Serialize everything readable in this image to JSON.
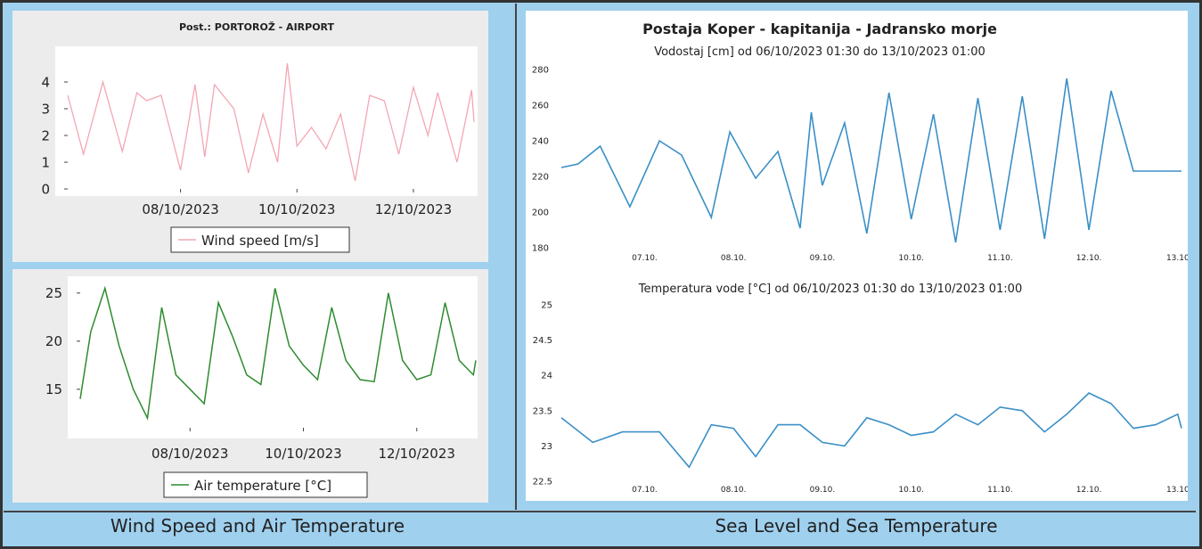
{
  "footer": {
    "left": "Wind Speed and Air Temperature",
    "right": "Sea Level and Sea Temperature"
  },
  "chart_data": [
    {
      "type": "line",
      "title": "Post.: PORTOROŽ - AIRPORT",
      "xlabel": "",
      "ylabel": "",
      "x_ticks": [
        "08/10/2023",
        "10/10/2023",
        "12/10/2023"
      ],
      "y_ticks": [
        "0",
        "1",
        "2",
        "3",
        "4"
      ],
      "ylim": [
        0,
        4.8
      ],
      "legend": "bottom-center",
      "color": "#f4a6b4",
      "series": [
        {
          "name": "Wind speed [m/s]",
          "x": [
            "2023-10-06T01:30",
            "2023-10-06T08:00",
            "2023-10-06T16:00",
            "2023-10-07T00:00",
            "2023-10-07T06:00",
            "2023-10-07T10:00",
            "2023-10-07T16:00",
            "2023-10-08T00:00",
            "2023-10-08T06:00",
            "2023-10-08T10:00",
            "2023-10-08T14:00",
            "2023-10-08T22:00",
            "2023-10-09T04:00",
            "2023-10-09T10:00",
            "2023-10-09T16:00",
            "2023-10-09T20:00",
            "2023-10-10T00:00",
            "2023-10-10T06:00",
            "2023-10-10T12:00",
            "2023-10-10T18:00",
            "2023-10-11T00:00",
            "2023-10-11T06:00",
            "2023-10-11T12:00",
            "2023-10-11T18:00",
            "2023-10-12T00:00",
            "2023-10-12T06:00",
            "2023-10-12T10:00",
            "2023-10-12T18:00",
            "2023-10-13T00:00",
            "2023-10-13T01:00"
          ],
          "y": [
            3.5,
            1.3,
            4.0,
            1.4,
            3.6,
            3.3,
            3.5,
            0.7,
            3.9,
            1.2,
            3.9,
            3.0,
            0.6,
            2.8,
            1.0,
            4.7,
            1.6,
            2.3,
            1.5,
            2.8,
            0.3,
            3.5,
            3.3,
            1.3,
            3.8,
            2.0,
            3.6,
            1.0,
            3.7,
            2.5
          ]
        }
      ]
    },
    {
      "type": "line",
      "title": "",
      "xlabel": "",
      "ylabel": "",
      "x_ticks": [
        "08/10/2023",
        "10/10/2023",
        "12/10/2023"
      ],
      "y_ticks": [
        "15",
        "20",
        "25"
      ],
      "ylim": [
        11,
        26
      ],
      "legend": "bottom-center",
      "color": "#2e8b2e",
      "series": [
        {
          "name": "Air temperature [°C]",
          "x": [
            "2023-10-06T01:30",
            "2023-10-06T06:00",
            "2023-10-06T12:00",
            "2023-10-06T18:00",
            "2023-10-07T00:00",
            "2023-10-07T06:00",
            "2023-10-07T12:00",
            "2023-10-07T18:00",
            "2023-10-08T00:00",
            "2023-10-08T06:00",
            "2023-10-08T12:00",
            "2023-10-08T18:00",
            "2023-10-09T00:00",
            "2023-10-09T06:00",
            "2023-10-09T12:00",
            "2023-10-09T18:00",
            "2023-10-10T00:00",
            "2023-10-10T06:00",
            "2023-10-10T12:00",
            "2023-10-10T18:00",
            "2023-10-11T00:00",
            "2023-10-11T06:00",
            "2023-10-11T12:00",
            "2023-10-11T18:00",
            "2023-10-12T00:00",
            "2023-10-12T06:00",
            "2023-10-12T12:00",
            "2023-10-12T18:00",
            "2023-10-13T00:00",
            "2023-10-13T01:00"
          ],
          "y": [
            14.0,
            21.0,
            25.5,
            19.5,
            15.0,
            12.0,
            23.5,
            16.5,
            15.0,
            13.5,
            24.0,
            20.5,
            16.5,
            15.5,
            25.5,
            19.5,
            17.5,
            16.0,
            23.5,
            18.0,
            16.0,
            15.8,
            25.0,
            18.0,
            16.0,
            16.5,
            24.0,
            18.0,
            16.5,
            18.0
          ]
        }
      ]
    },
    {
      "type": "line",
      "title": "Postaja Koper - kapitanija - Jadransko morje",
      "subtitle": "Vodostaj [cm] od 06/10/2023 01:30 do 13/10/2023 01:00",
      "xlabel": "",
      "ylabel": "",
      "x_ticks": [
        "07.10.",
        "08.10.",
        "09.10.",
        "10.10.",
        "11.10.",
        "12.10.",
        "13.10"
      ],
      "y_ticks": [
        "180",
        "200",
        "220",
        "240",
        "260",
        "280"
      ],
      "ylim": [
        180,
        280
      ],
      "color": "#3a8fc7",
      "series": [
        {
          "x": [
            "2023-10-06T01:30",
            "2023-10-06T06:00",
            "2023-10-06T12:00",
            "2023-10-06T20:00",
            "2023-10-07T04:00",
            "2023-10-07T10:00",
            "2023-10-07T18:00",
            "2023-10-07T23:00",
            "2023-10-08T06:00",
            "2023-10-08T12:00",
            "2023-10-08T18:00",
            "2023-10-08T21:00",
            "2023-10-09T00:00",
            "2023-10-09T06:00",
            "2023-10-09T12:00",
            "2023-10-09T18:00",
            "2023-10-10T00:00",
            "2023-10-10T06:00",
            "2023-10-10T12:00",
            "2023-10-10T18:00",
            "2023-10-11T00:00",
            "2023-10-11T06:00",
            "2023-10-11T12:00",
            "2023-10-11T18:00",
            "2023-10-12T00:00",
            "2023-10-12T06:00",
            "2023-10-12T12:00",
            "2023-10-12T18:00",
            "2023-10-13T00:00",
            "2023-10-13T01:00"
          ],
          "y": [
            225,
            227,
            237,
            203,
            240,
            232,
            197,
            245,
            219,
            234,
            191,
            256,
            215,
            250,
            188,
            267,
            196,
            255,
            183,
            264,
            190,
            265,
            185,
            275,
            190,
            268,
            223,
            223,
            223,
            223
          ]
        }
      ]
    },
    {
      "type": "line",
      "title": "Temperatura vode [°C] od 06/10/2023 01:30 do 13/10/2023 01:00",
      "xlabel": "",
      "ylabel": "",
      "x_ticks": [
        "07.10.",
        "08.10.",
        "09.10.",
        "10.10.",
        "11.10.",
        "12.10.",
        "13.10"
      ],
      "y_ticks": [
        "22.5",
        "23",
        "23.5",
        "24",
        "24.5",
        "25"
      ],
      "ylim": [
        22.5,
        25
      ],
      "color": "#3a8fc7",
      "series": [
        {
          "x": [
            "2023-10-06T01:30",
            "2023-10-06T10:00",
            "2023-10-06T18:00",
            "2023-10-07T04:00",
            "2023-10-07T12:00",
            "2023-10-07T18:00",
            "2023-10-08T00:00",
            "2023-10-08T06:00",
            "2023-10-08T12:00",
            "2023-10-08T18:00",
            "2023-10-09T00:00",
            "2023-10-09T06:00",
            "2023-10-09T12:00",
            "2023-10-09T18:00",
            "2023-10-10T00:00",
            "2023-10-10T06:00",
            "2023-10-10T12:00",
            "2023-10-10T18:00",
            "2023-10-11T00:00",
            "2023-10-11T06:00",
            "2023-10-11T12:00",
            "2023-10-11T18:00",
            "2023-10-12T00:00",
            "2023-10-12T06:00",
            "2023-10-12T12:00",
            "2023-10-12T18:00",
            "2023-10-13T00:00",
            "2023-10-13T01:00"
          ],
          "y": [
            23.4,
            23.05,
            23.2,
            23.2,
            22.7,
            23.3,
            23.25,
            22.85,
            23.3,
            23.3,
            23.05,
            23.0,
            23.4,
            23.3,
            23.15,
            23.2,
            23.45,
            23.3,
            23.55,
            23.5,
            23.2,
            23.45,
            23.75,
            23.6,
            23.25,
            23.3,
            23.45,
            23.25
          ]
        }
      ]
    }
  ]
}
